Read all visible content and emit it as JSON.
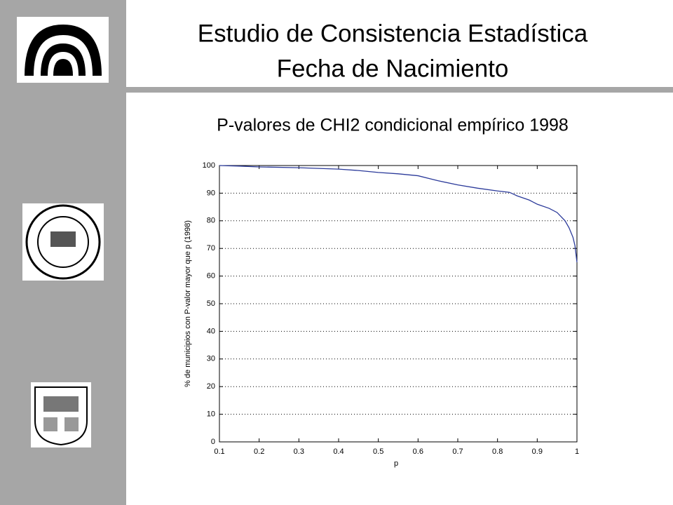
{
  "header": {
    "title_line1": "Estudio de Consistencia Estadística",
    "title_line2": "Fecha de Nacimiento"
  },
  "chart_data": {
    "type": "line",
    "title": "P-valores de CHI2 condicional empírico 1998",
    "x_label": "p",
    "y_label": "% de municipios con P-valor mayor que p (1998)",
    "x": [
      0.1,
      0.15,
      0.2,
      0.3,
      0.4,
      0.45,
      0.5,
      0.55,
      0.6,
      0.65,
      0.7,
      0.75,
      0.8,
      0.83,
      0.85,
      0.88,
      0.9,
      0.93,
      0.95,
      0.97,
      0.98,
      0.99,
      0.995,
      1
    ],
    "series": [
      {
        "color": "#2b3a9a",
        "values": [
          100,
          99.8,
          99.5,
          99.2,
          98.7,
          98.2,
          97.5,
          97,
          96.3,
          94.5,
          93,
          91.8,
          90.8,
          90.3,
          89,
          87.5,
          86,
          84.5,
          83,
          80,
          77.5,
          74,
          71,
          65
        ]
      }
    ],
    "xlim": [
      0.1,
      1
    ],
    "ylim": [
      0,
      100
    ],
    "xticks": [
      0.1,
      0.2,
      0.3,
      0.4,
      0.5,
      0.6,
      0.7,
      0.8,
      0.9,
      1
    ],
    "yticks": [
      0,
      10,
      20,
      30,
      40,
      50,
      60,
      70,
      80,
      90,
      100
    ],
    "grid": true
  }
}
